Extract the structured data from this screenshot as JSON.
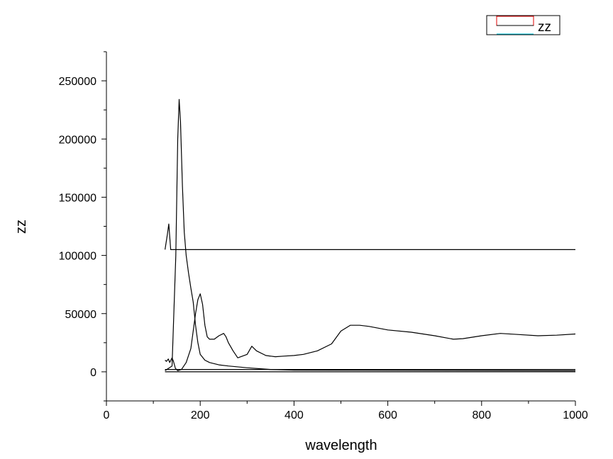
{
  "chart_data": {
    "type": "line",
    "xlabel": "wavelength",
    "ylabel": "zz",
    "xlim": [
      0,
      1000
    ],
    "ylim": [
      -25000,
      275000
    ],
    "x_ticks": [
      0,
      200,
      400,
      600,
      800,
      1000
    ],
    "y_ticks": [
      0,
      50000,
      100000,
      150000,
      200000,
      250000
    ],
    "grid": false,
    "legend": {
      "position": "top-right",
      "entries": [
        "zz"
      ]
    },
    "series": [
      {
        "color": "#000000",
        "x": [
          125,
          130,
          133,
          137,
          141,
          1000
        ],
        "y": [
          105000,
          118000,
          127000,
          105000,
          105000,
          105000
        ]
      },
      {
        "color": "#000000",
        "x": [
          125,
          140,
          148,
          152,
          155,
          158,
          162,
          166,
          170,
          175,
          180,
          185,
          190,
          195,
          200,
          210,
          220,
          240,
          260,
          300,
          350,
          400,
          1000
        ],
        "y": [
          1000,
          5000,
          100000,
          200000,
          234000,
          215000,
          160000,
          120000,
          100000,
          85000,
          72000,
          60000,
          40000,
          25000,
          15000,
          10000,
          8000,
          6000,
          5000,
          3500,
          2000,
          1500,
          1000
        ]
      },
      {
        "color": "#000000",
        "x": [
          125,
          128,
          132,
          135,
          140,
          143,
          147,
          152,
          160,
          170,
          180,
          190,
          195,
          200,
          205,
          210,
          215,
          220,
          230,
          240,
          250,
          255,
          260,
          270,
          280,
          300,
          310,
          320,
          340,
          360,
          380,
          400,
          420,
          450,
          480,
          500,
          520,
          540,
          560,
          600,
          650,
          700,
          740,
          760,
          800,
          840,
          880,
          920,
          960,
          1000
        ],
        "y": [
          10000,
          9000,
          11000,
          8000,
          12000,
          9000,
          3000,
          1000,
          2000,
          8000,
          20000,
          50000,
          62000,
          67000,
          58000,
          40000,
          30000,
          28000,
          28000,
          31000,
          33000,
          30000,
          25000,
          18000,
          12000,
          15000,
          22000,
          18000,
          14000,
          13000,
          13500,
          14000,
          15000,
          18000,
          24000,
          35000,
          40000,
          40000,
          39000,
          36000,
          34000,
          31000,
          28000,
          28500,
          31000,
          33000,
          32000,
          31000,
          31500,
          32500
        ]
      },
      {
        "color": "#000000",
        "x": [
          125,
          1000
        ],
        "y": [
          2000,
          2000
        ]
      },
      {
        "color": "#000000",
        "x": [
          125,
          1000
        ],
        "y": [
          0,
          0
        ]
      }
    ]
  }
}
